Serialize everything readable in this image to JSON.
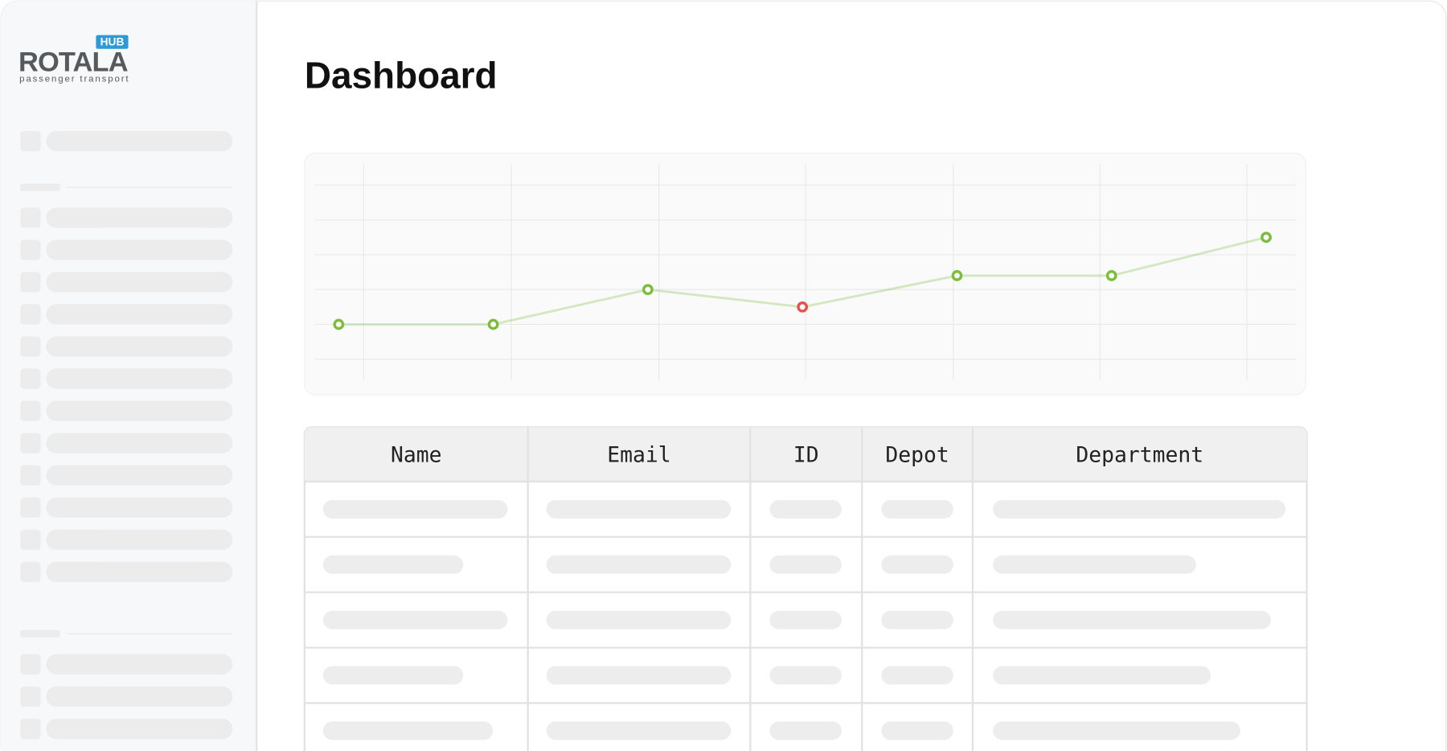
{
  "logo": {
    "name": "ROTALA",
    "badge": "HUB",
    "tagline": "passenger transport"
  },
  "header": {
    "title": "Dashboard"
  },
  "chart_data": {
    "type": "line",
    "categories": [
      null,
      null,
      null,
      null,
      null,
      null,
      null
    ],
    "series": [
      {
        "values": [
          1,
          1,
          2,
          1.5,
          2.4,
          2.4,
          3.5
        ],
        "color": "#7cbd3c"
      }
    ],
    "point_colors": [
      "#7cbd3c",
      "#7cbd3c",
      "#7cbd3c",
      "#e5534b",
      "#7cbd3c",
      "#7cbd3c",
      "#7cbd3c"
    ],
    "ylim": [
      -0.6,
      5.6
    ],
    "yticks": [
      0,
      1,
      2,
      3,
      4,
      5
    ],
    "grid": true
  },
  "table": {
    "headers": [
      "Name",
      "Email",
      "ID",
      "Depot",
      "Department"
    ]
  }
}
